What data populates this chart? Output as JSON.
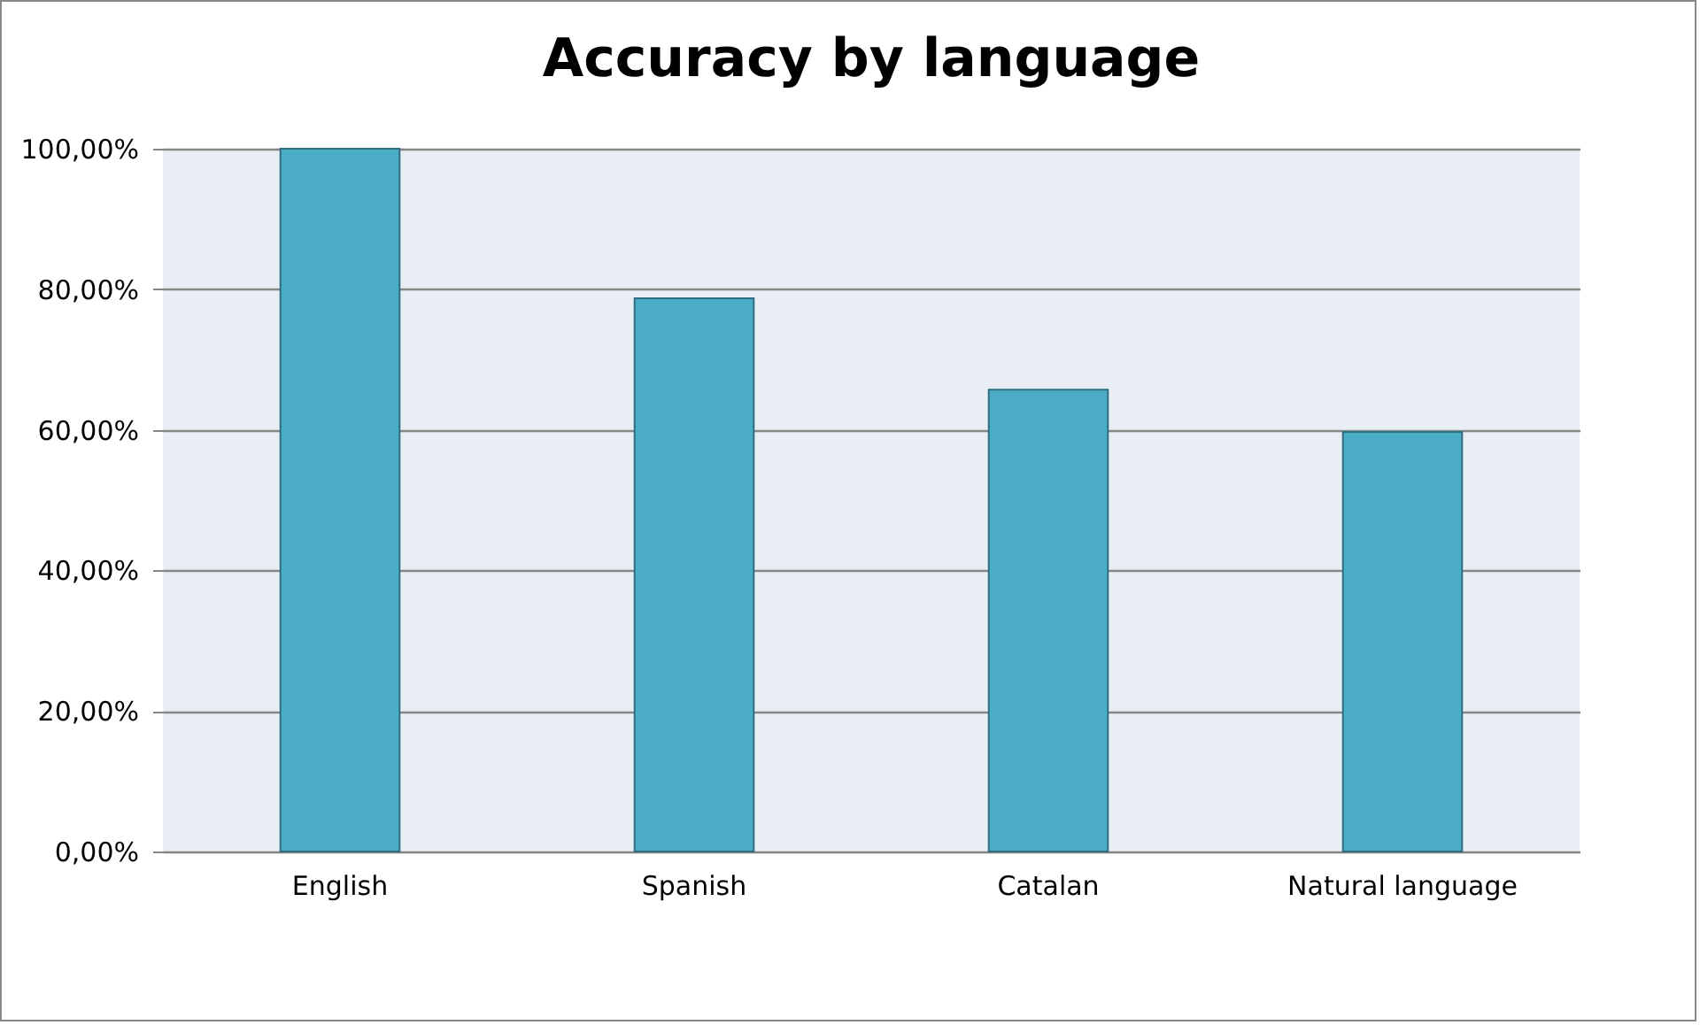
{
  "chart_data": {
    "type": "bar",
    "title": "Accuracy by language",
    "categories": [
      "English",
      "Spanish",
      "Catalan",
      "Natural language"
    ],
    "values": [
      100,
      78.7,
      65.7,
      59.7
    ],
    "color": "#4bacc6",
    "ylim": [
      0,
      100
    ],
    "yticks": [
      {
        "value": 0,
        "label": "0,00%"
      },
      {
        "value": 20,
        "label": "20,00%"
      },
      {
        "value": 40,
        "label": "40,00%"
      },
      {
        "value": 60,
        "label": "60,00%"
      },
      {
        "value": 80,
        "label": "80,00%"
      },
      {
        "value": 100,
        "label": "100,00%"
      }
    ],
    "grid": "y"
  }
}
